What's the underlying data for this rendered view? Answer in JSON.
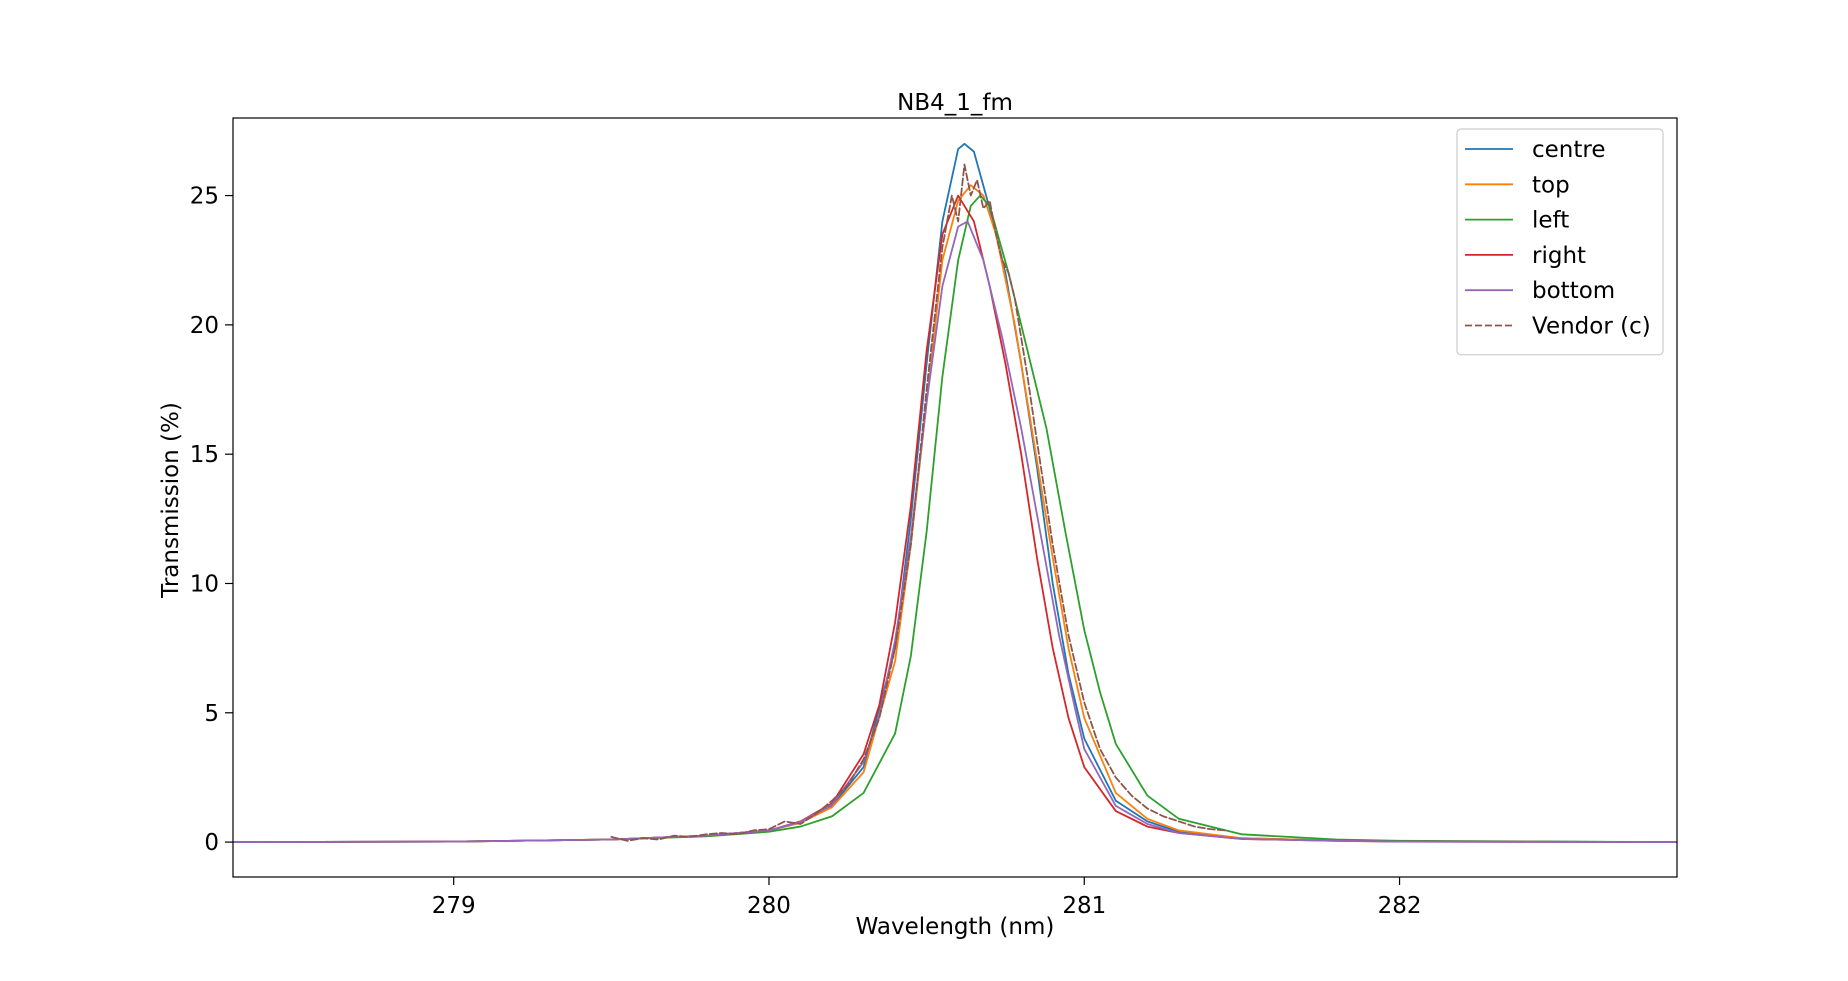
{
  "chart_data": {
    "type": "line",
    "title": "NB4_1_fm",
    "xlabel": "Wavelength (nm)",
    "ylabel": "Transmission (%)",
    "xlim": [
      278.3,
      282.88
    ],
    "ylim": [
      -1.35,
      28.0
    ],
    "xticks": [
      279,
      280,
      281,
      282
    ],
    "xtick_labels": [
      "279",
      "280",
      "281",
      "282"
    ],
    "yticks": [
      0,
      5,
      10,
      15,
      20,
      25
    ],
    "ytick_labels": [
      "0",
      "5",
      "10",
      "15",
      "20",
      "25"
    ],
    "grid": false,
    "legend_position": "upper right",
    "series": [
      {
        "name": "centre",
        "color": "#1f77b4",
        "dash": "solid",
        "x": [
          278.3,
          279.0,
          279.5,
          279.8,
          280.0,
          280.1,
          280.2,
          280.3,
          280.4,
          280.45,
          280.5,
          280.55,
          280.6,
          280.62,
          280.65,
          280.7,
          280.75,
          280.8,
          280.85,
          280.9,
          280.95,
          281.0,
          281.1,
          281.2,
          281.3,
          281.5,
          281.8,
          282.0,
          282.88
        ],
        "y": [
          0.0,
          0.02,
          0.1,
          0.25,
          0.45,
          0.75,
          1.4,
          2.9,
          7.5,
          12.5,
          18.5,
          24.0,
          26.8,
          27.0,
          26.7,
          24.5,
          22.0,
          18.5,
          14.5,
          10.0,
          6.5,
          4.0,
          1.6,
          0.8,
          0.4,
          0.15,
          0.06,
          0.03,
          0.0
        ]
      },
      {
        "name": "top",
        "color": "#ff7f0e",
        "dash": "solid",
        "x": [
          278.3,
          279.0,
          279.5,
          279.8,
          280.0,
          280.1,
          280.2,
          280.3,
          280.4,
          280.45,
          280.5,
          280.55,
          280.6,
          280.64,
          280.68,
          280.72,
          280.78,
          280.84,
          280.9,
          280.95,
          281.0,
          281.1,
          281.2,
          281.3,
          281.5,
          281.8,
          282.0,
          282.88
        ],
        "y": [
          0.0,
          0.02,
          0.1,
          0.25,
          0.45,
          0.75,
          1.35,
          2.7,
          7.0,
          11.5,
          17.0,
          22.5,
          24.8,
          25.4,
          25.0,
          23.5,
          20.0,
          15.5,
          11.0,
          7.5,
          4.8,
          1.9,
          0.9,
          0.45,
          0.15,
          0.06,
          0.03,
          0.0
        ]
      },
      {
        "name": "left",
        "color": "#2ca02c",
        "dash": "solid",
        "x": [
          278.3,
          279.0,
          279.5,
          279.8,
          280.0,
          280.1,
          280.2,
          280.3,
          280.4,
          280.45,
          280.5,
          280.55,
          280.6,
          280.64,
          280.67,
          280.7,
          280.76,
          280.82,
          280.88,
          280.94,
          281.0,
          281.05,
          281.1,
          281.2,
          281.3,
          281.5,
          281.8,
          282.0,
          282.88
        ],
        "y": [
          0.0,
          0.02,
          0.1,
          0.22,
          0.4,
          0.6,
          1.0,
          1.9,
          4.2,
          7.2,
          12.0,
          18.0,
          22.5,
          24.6,
          25.0,
          24.6,
          22.0,
          19.0,
          16.0,
          12.0,
          8.2,
          5.8,
          3.8,
          1.8,
          0.9,
          0.3,
          0.1,
          0.05,
          0.0
        ]
      },
      {
        "name": "right",
        "color": "#d62728",
        "dash": "solid",
        "x": [
          278.3,
          279.0,
          279.5,
          279.8,
          280.0,
          280.1,
          280.2,
          280.3,
          280.35,
          280.4,
          280.45,
          280.5,
          280.55,
          280.6,
          280.65,
          280.7,
          280.75,
          280.8,
          280.85,
          280.9,
          280.95,
          281.0,
          281.1,
          281.2,
          281.3,
          281.5,
          281.8,
          282.0,
          282.88
        ],
        "y": [
          0.0,
          0.02,
          0.1,
          0.25,
          0.45,
          0.8,
          1.5,
          3.4,
          5.3,
          8.5,
          13.0,
          19.0,
          23.5,
          25.0,
          24.0,
          21.5,
          18.5,
          15.0,
          11.0,
          7.5,
          4.8,
          2.9,
          1.2,
          0.6,
          0.35,
          0.12,
          0.05,
          0.02,
          0.0
        ]
      },
      {
        "name": "bottom",
        "color": "#9467bd",
        "dash": "solid",
        "x": [
          278.3,
          279.0,
          279.5,
          279.8,
          280.0,
          280.1,
          280.2,
          280.3,
          280.35,
          280.4,
          280.45,
          280.5,
          280.55,
          280.6,
          280.63,
          280.68,
          280.74,
          280.8,
          280.86,
          280.92,
          280.97,
          281.0,
          281.1,
          281.2,
          281.3,
          281.5,
          281.8,
          282.0,
          282.88
        ],
        "y": [
          0.0,
          0.02,
          0.1,
          0.25,
          0.45,
          0.78,
          1.45,
          3.1,
          4.9,
          7.8,
          11.8,
          17.0,
          21.5,
          23.8,
          24.0,
          22.5,
          19.5,
          16.0,
          12.0,
          8.0,
          5.2,
          3.6,
          1.4,
          0.7,
          0.35,
          0.12,
          0.05,
          0.02,
          0.0
        ]
      },
      {
        "name": "Vendor (c)",
        "color": "#8c564b",
        "dash": "dashed",
        "x": [
          279.5,
          279.55,
          279.6,
          279.65,
          279.7,
          279.75,
          279.8,
          279.85,
          279.9,
          279.95,
          280.0,
          280.05,
          280.1,
          280.15,
          280.2,
          280.25,
          280.3,
          280.35,
          280.4,
          280.45,
          280.5,
          280.55,
          280.58,
          280.6,
          280.62,
          280.64,
          280.66,
          280.68,
          280.7,
          280.72,
          280.74,
          280.76,
          280.78,
          280.8,
          280.82,
          280.85,
          280.9,
          280.95,
          281.0,
          281.05,
          281.1,
          281.15,
          281.2,
          281.25,
          281.3,
          281.35,
          281.4,
          281.45
        ],
        "y": [
          0.2,
          0.05,
          0.15,
          0.1,
          0.25,
          0.2,
          0.3,
          0.35,
          0.3,
          0.45,
          0.5,
          0.8,
          0.7,
          1.1,
          1.6,
          2.2,
          3.2,
          4.8,
          7.5,
          11.5,
          17.5,
          23.0,
          25.0,
          24.0,
          26.2,
          25.0,
          25.6,
          24.5,
          24.8,
          23.5,
          22.5,
          22.0,
          21.0,
          19.5,
          18.0,
          15.5,
          11.5,
          8.0,
          5.4,
          3.6,
          2.5,
          1.8,
          1.3,
          1.0,
          0.8,
          0.6,
          0.5,
          0.45
        ]
      }
    ]
  }
}
